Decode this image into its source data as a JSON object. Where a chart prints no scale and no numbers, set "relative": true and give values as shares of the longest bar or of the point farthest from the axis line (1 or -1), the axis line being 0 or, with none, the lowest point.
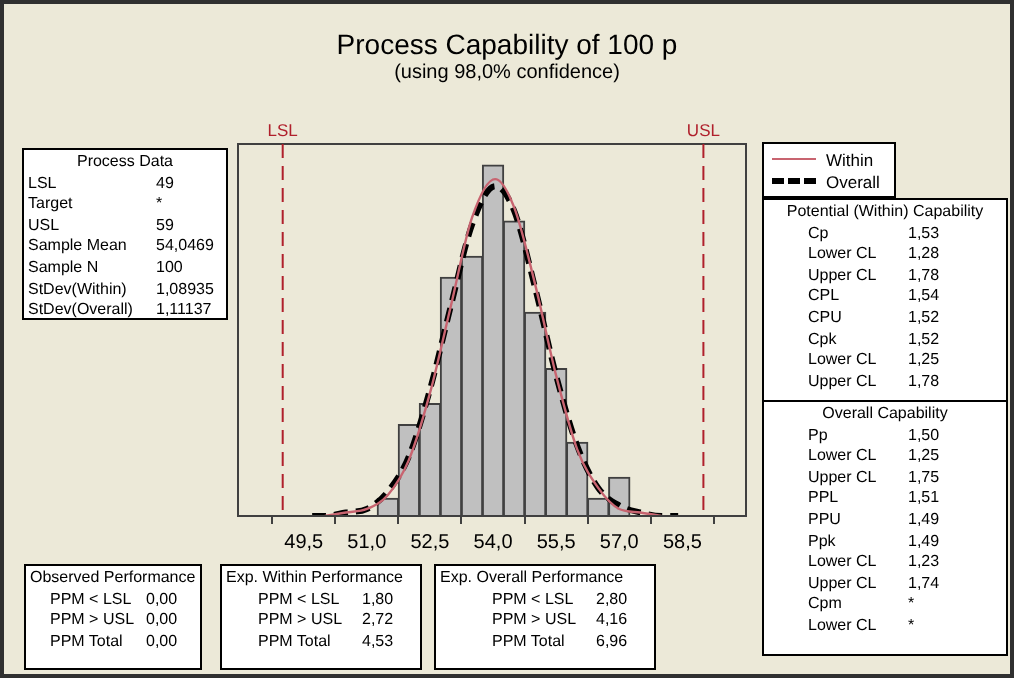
{
  "chart_data": {
    "type": "histogram",
    "title": "Process Capability of 100 p",
    "subtitle": "(using 98,0% confidence)",
    "bins": [
      51.25,
      51.75,
      52.25,
      52.75,
      53.25,
      53.75,
      54.25,
      54.75,
      55.25,
      55.75,
      56.25,
      56.75,
      57.25
    ],
    "values": [
      0.05,
      0.26,
      0.32,
      0.68,
      0.74,
      1,
      0.84,
      0.58,
      0.42,
      0.21,
      0.05,
      0.11
    ],
    "color": "#c0c0c0",
    "relative": true,
    "xlim": [
      48.8,
      59.15
    ],
    "xticks": [
      {
        "value": 49.5,
        "label": "49,5"
      },
      {
        "value": 51,
        "label": "51,0"
      },
      {
        "value": 52.5,
        "label": "52,5"
      },
      {
        "value": 54,
        "label": "54,0"
      },
      {
        "value": 55.5,
        "label": "55,5"
      },
      {
        "value": 57,
        "label": "57,0"
      },
      {
        "value": 58.5,
        "label": "58,5"
      }
    ],
    "series": [
      {
        "name": "Within",
        "type": "line",
        "color": "#c86470",
        "line_style": "solid",
        "x": [
          50,
          50.5,
          51,
          51.5,
          52,
          52.5,
          53,
          53.5,
          54.05,
          54.5,
          55,
          55.5,
          56,
          56.5,
          57,
          57.5,
          58
        ],
        "values": [
          0,
          0.01,
          0.02,
          0.06,
          0.16,
          0.35,
          0.6,
          0.85,
          0.96,
          0.88,
          0.66,
          0.4,
          0.19,
          0.08,
          0.02,
          0.01,
          0
        ]
      },
      {
        "name": "Overall",
        "type": "line",
        "color": "#000000",
        "line_style": "dashed",
        "x": [
          49.7,
          50,
          50.5,
          51,
          51.5,
          52,
          52.5,
          53,
          53.5,
          54.05,
          54.5,
          55,
          55.5,
          56,
          56.5,
          57,
          57.5,
          58,
          58.4
        ],
        "values": [
          0,
          0,
          0.01,
          0.02,
          0.07,
          0.17,
          0.36,
          0.6,
          0.83,
          0.94,
          0.87,
          0.65,
          0.4,
          0.2,
          0.08,
          0.03,
          0.01,
          0,
          0
        ]
      }
    ],
    "ref_lines": [
      {
        "axis": "x",
        "value": 49,
        "label": "LSL",
        "color": "#b0202c",
        "line_style": "dashed"
      },
      {
        "axis": "x",
        "value": 59,
        "label": "USL",
        "color": "#b0202c",
        "line_style": "dashed"
      }
    ],
    "legend": "top right",
    "marker": "none",
    "grid": false,
    "tick_labels": "x",
    "annotations": [
      "Process Data\nLSL\t49\nTarget\t*\nUSL\t59\nSample Mean\t54,0469\nSample N\t100\nStDev(Within)\t1,08935\nStDev(Overall)\t1,11137",
      "Potential (Within) Capability\nCp\t1,53\nLower CL\t1,28\nUpper CL\t1,78\nCPL\t1,54\nCPU\t1,52\nCpk\t1,52\nLower CL\t1,25\nUpper CL\t1,78",
      "Overall Capability\nPp\t1,50\nLower CL\t1,25\nUpper CL\t1,75\nPPL\t1,51\nPPU\t1,49\nPpk\t1,49\nLower CL\t1,23\nUpper CL\t1,74\nCpm\t*\nLower CL\t*",
      "Observed Performance\nPPM < LSL\t0,00\nPPM > USL\t0,00\nPPM Total\t0,00",
      "Exp. Within Performance\nPPM < LSL\t1,80\nPPM > USL\t2,72\nPPM Total\t4,53",
      "Exp. Overall Performance\nPPM < LSL\t2,80\nPPM > USL\t4,16\nPPM Total\t6,96"
    ]
  }
}
